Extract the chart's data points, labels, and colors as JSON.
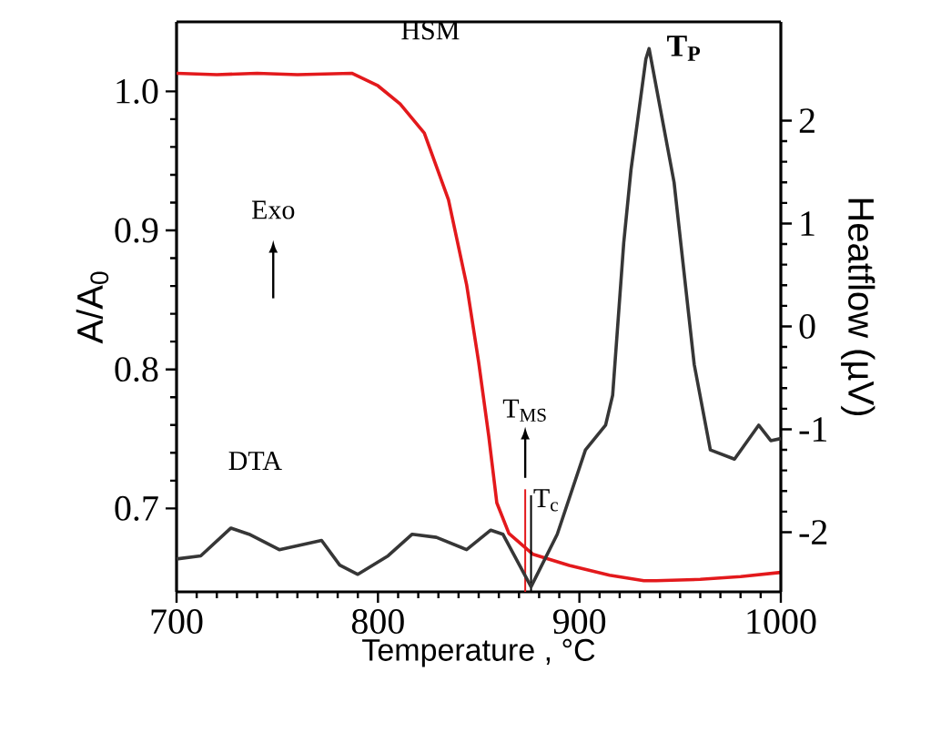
{
  "chart_data": {
    "type": "line",
    "xlabel": "Temperature , °C",
    "ylabel": "A/A$_{0}$",
    "y2label": "Heatflow (µV)",
    "xlim": [
      700,
      1000
    ],
    "xticks": [
      700,
      800,
      900,
      1000
    ],
    "ylim": [
      0.64,
      1.05
    ],
    "yticks": [
      0.7,
      0.8,
      0.9,
      {
        "value": 1.0,
        "label": "1.0"
      }
    ],
    "y2lim": [
      -2.58,
      2.96
    ],
    "y2ticks": [
      -2,
      -1,
      0,
      1,
      2
    ],
    "legend": false,
    "grid": false,
    "marker": "none",
    "line_style": "solid",
    "series": [
      {
        "name": "HSM",
        "color": "#e3191c",
        "x": [
          700,
          720,
          740,
          760,
          787,
          800,
          811,
          823,
          835,
          844,
          850,
          855,
          859,
          865,
          877,
          895,
          915,
          932,
          938,
          960,
          980,
          1000
        ],
        "values": [
          1.013,
          1.012,
          1.013,
          1.012,
          1.013,
          1.004,
          0.991,
          0.97,
          0.922,
          0.861,
          0.805,
          0.752,
          0.704,
          0.682,
          0.667,
          0.659,
          0.652,
          0.648,
          0.648,
          0.649,
          0.651,
          0.654
        ]
      },
      {
        "name": "DTA",
        "axis": "y2",
        "color": "#363636",
        "x": [
          700,
          712,
          727,
          736,
          751,
          772,
          781,
          790,
          805,
          817,
          829,
          844,
          856,
          862,
          876,
          889,
          903,
          913,
          916.5,
          922,
          925.6,
          933,
          934.6,
          947,
          957,
          965,
          977,
          989,
          995,
          1000
        ],
        "values": [
          -2.26,
          -2.23,
          -1.96,
          -2.02,
          -2.17,
          -2.08,
          -2.32,
          -2.41,
          -2.23,
          -2.02,
          -2.05,
          -2.17,
          -1.98,
          -2.02,
          -2.53,
          -2.02,
          -1.2,
          -0.96,
          -0.67,
          0.81,
          1.52,
          2.6,
          2.7,
          1.4,
          -0.37,
          -1.2,
          -1.29,
          -0.96,
          -1.11,
          -1.09
        ]
      }
    ],
    "annotations": [
      "Exo",
      "T$_{MS}$",
      {
        "text": "T$_{c}$",
        "x": 876,
        "y": 0.644
      },
      {
        "text": "T$_{P}$",
        "x": 935,
        "y": 1.031
      }
    ]
  }
}
